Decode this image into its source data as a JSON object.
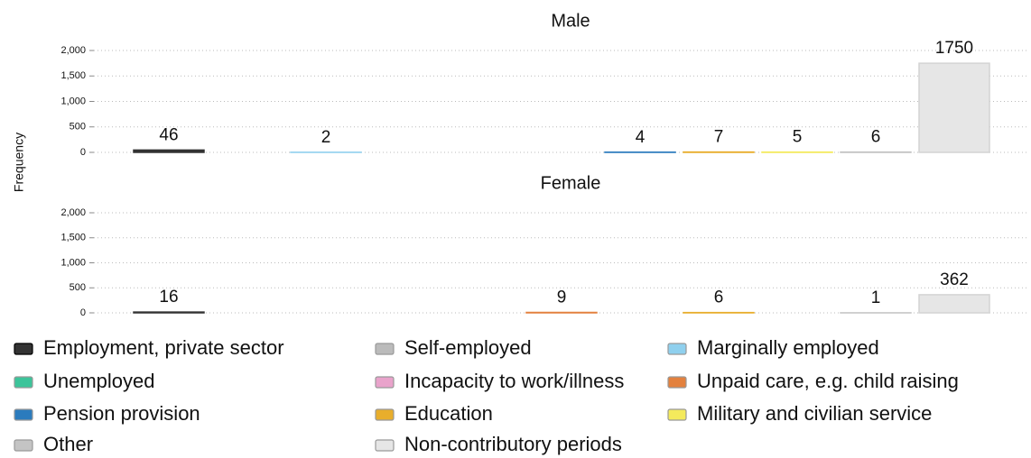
{
  "chart_data": {
    "type": "bar",
    "ylabel": "Frequency",
    "categories": [
      "Employment, private sector",
      "Self-employed",
      "Marginally employed",
      "Unemployed",
      "Incapacity to work/illness",
      "Unpaid care, e.g. child raising",
      "Pension provision",
      "Education",
      "Military and civilian service",
      "Other",
      "Non-contributory periods"
    ],
    "colors": [
      "#333333",
      "#bbbbbb",
      "#8fd0ee",
      "#3cc49a",
      "#e9a3cb",
      "#e3813e",
      "#2b7bbd",
      "#e8ae2c",
      "#f4ea5c",
      "#c4c4c4",
      "#e6e6e6"
    ],
    "series": [
      {
        "name": "Male",
        "values": [
          46,
          null,
          2,
          null,
          null,
          null,
          4,
          7,
          5,
          6,
          1750
        ]
      },
      {
        "name": "Female",
        "values": [
          16,
          null,
          null,
          null,
          null,
          9,
          null,
          6,
          null,
          1,
          362
        ]
      }
    ],
    "ylim": [
      0,
      2000
    ],
    "yticks": [
      0,
      500,
      {
        "value": 1000,
        "label": "1,000"
      },
      {
        "value": 1500,
        "label": "1,500"
      },
      {
        "value": 2000,
        "label": "2,000"
      }
    ],
    "grid": true
  }
}
